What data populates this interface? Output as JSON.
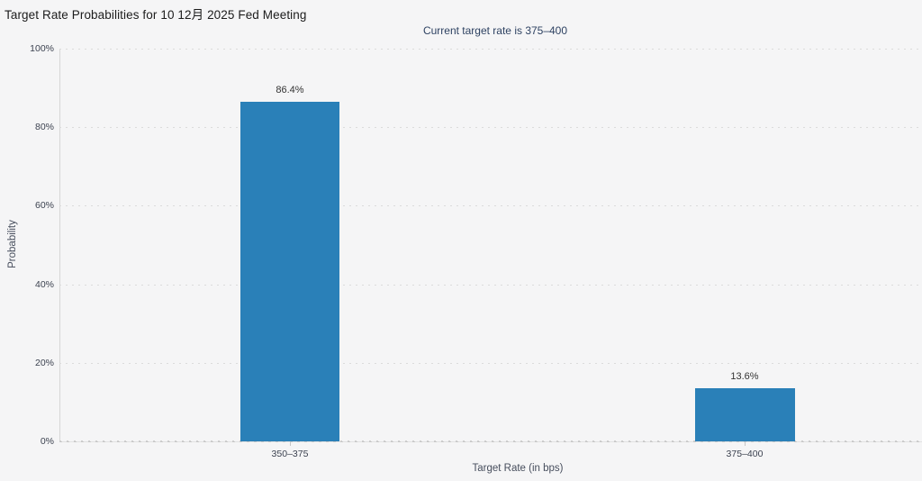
{
  "chart": {
    "title": "Target Rate Probabilities for 10 12月 2025 Fed Meeting",
    "subtitle": "Current target rate is 375–400",
    "x_axis": {
      "title": "Target Rate (in bps)"
    },
    "y_axis": {
      "title": "Probability"
    }
  },
  "chart_data": {
    "type": "bar",
    "title": "Target Rate Probabilities for 10 12月 2025 Fed Meeting",
    "subtitle": "Current target rate is 375–400",
    "xlabel": "Target Rate (in bps)",
    "ylabel": "Probability",
    "categories": [
      "350–375",
      "375–400"
    ],
    "values": [
      86.4,
      13.6
    ],
    "data_labels": [
      "86.4%",
      "13.6%"
    ],
    "ylim": [
      0,
      100
    ],
    "yticks": [
      {
        "value": 0,
        "label": "0%"
      },
      {
        "value": 20,
        "label": "20%"
      },
      {
        "value": 40,
        "label": "40%"
      },
      {
        "value": 60,
        "label": "60%"
      },
      {
        "value": 80,
        "label": "80%"
      },
      {
        "value": 100,
        "label": "100%"
      }
    ],
    "grid": "horizontal-dotted",
    "legend": "none",
    "bar_color": "#2a80b8"
  },
  "colors": {
    "background": "#f5f5f6",
    "bar": "#2a80b8",
    "title_text": "#1c1c1c",
    "subtitle_text": "#2e4262",
    "axis_text": "#3c4250",
    "grid": "#dbdbdb"
  }
}
